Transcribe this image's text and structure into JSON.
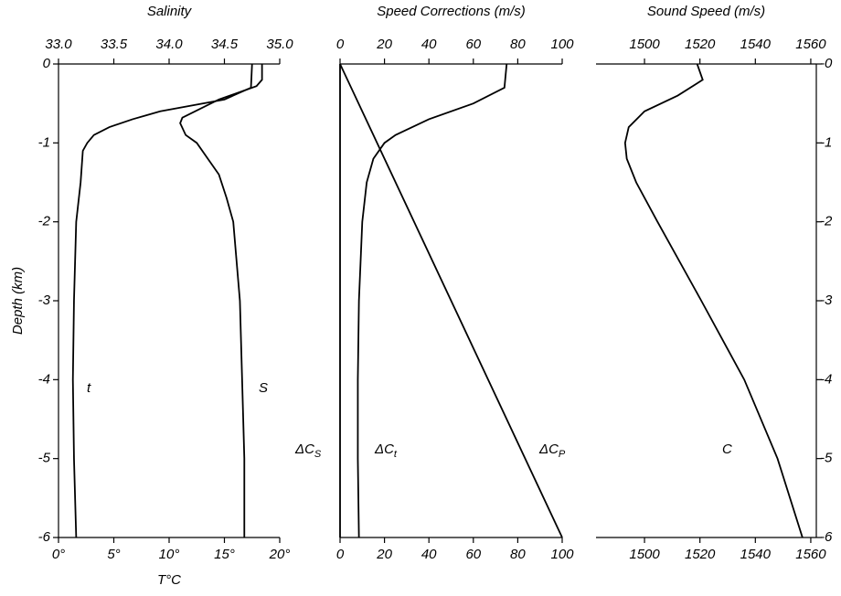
{
  "chart_data": [
    {
      "type": "line",
      "title": "Salinity",
      "xlabel": "T°C",
      "ylabel": "Depth (km)",
      "xlim": [
        0,
        20
      ],
      "xticks": [
        {
          "value": 0,
          "label": "0°"
        },
        {
          "value": 5,
          "label": "5°"
        },
        {
          "value": 10,
          "label": "10°"
        },
        {
          "value": 15,
          "label": "15°"
        },
        {
          "value": 20,
          "label": "20°"
        }
      ],
      "x2lim": [
        33,
        35
      ],
      "x2ticks": [
        {
          "value": 33,
          "label": "33.0"
        },
        33.5,
        {
          "value": 34,
          "label": "34.0"
        },
        34.5,
        {
          "value": 35,
          "label": "35.0"
        }
      ],
      "ylim": [
        -6,
        0
      ],
      "yticks": [
        0,
        -1,
        -2,
        -3,
        -4,
        -5,
        -6
      ],
      "color": "#000000",
      "series": [
        {
          "name": "t",
          "x": [
            17.5,
            17.4,
            15,
            9.2,
            6.7,
            4.6,
            3.2,
            2.6,
            2.2,
            2.0,
            1.6,
            1.4,
            1.3,
            1.4,
            1.6
          ],
          "y": [
            0,
            -0.3,
            -0.45,
            -0.6,
            -0.7,
            -0.8,
            -0.9,
            -1,
            -1.1,
            -1.5,
            -2,
            -3,
            -4,
            -5,
            -6
          ]
        },
        {
          "name": "S",
          "axis": "x2",
          "x": [
            34.84,
            34.84,
            34.79,
            34.45,
            34.12,
            34.1,
            34.15,
            34.25,
            34.35,
            34.45,
            34.52,
            34.58,
            34.64,
            34.66,
            34.68,
            34.68
          ],
          "y": [
            0,
            -0.2,
            -0.28,
            -0.45,
            -0.68,
            -0.75,
            -0.9,
            -1.0,
            -1.2,
            -1.4,
            -1.7,
            -2,
            -3,
            -4,
            -5,
            -6
          ]
        }
      ]
    },
    {
      "type": "line",
      "title": "Speed Corrections (m/s)",
      "xlim": [
        0,
        100
      ],
      "xticks": [
        0,
        20,
        40,
        60,
        80,
        100
      ],
      "ylim": [
        -6,
        0
      ],
      "color": "#000000",
      "series": [
        {
          "name": "ΔC",
          "subscript": "S",
          "x": [
            0,
            0
          ],
          "y": [
            0,
            -6
          ]
        },
        {
          "name": "ΔC",
          "subscript": "t",
          "x": [
            75,
            74,
            60,
            40,
            25,
            20,
            15,
            12,
            10,
            8.5,
            8,
            8,
            8.5
          ],
          "y": [
            0,
            -0.3,
            -0.5,
            -0.7,
            -0.9,
            -1,
            -1.2,
            -1.5,
            -2,
            -3,
            -4,
            -5,
            -6
          ]
        },
        {
          "name": "ΔC",
          "subscript": "P",
          "x": [
            0,
            100
          ],
          "y": [
            0,
            -6
          ]
        }
      ]
    },
    {
      "type": "line",
      "title": "Sound Speed (m/s)",
      "xlim": [
        1482.5,
        1562
      ],
      "xticks": [
        1500,
        1520,
        1540,
        1560
      ],
      "ylim": [
        -6,
        0
      ],
      "yticks": [
        {
          "value": 0,
          "label": "-0"
        },
        -1,
        -2,
        -3,
        -4,
        -5,
        -6
      ],
      "color": "#000000",
      "series": [
        {
          "name": "C",
          "x": [
            1519,
            1521,
            1512,
            1500,
            1494.3,
            1493,
            1493.6,
            1497,
            1504.7,
            1520.5,
            1536,
            1548,
            1557
          ],
          "y": [
            0,
            -0.2,
            -0.4,
            -0.6,
            -0.8,
            -1,
            -1.2,
            -1.5,
            -2,
            -3,
            -4,
            -5,
            -6
          ]
        }
      ]
    }
  ]
}
